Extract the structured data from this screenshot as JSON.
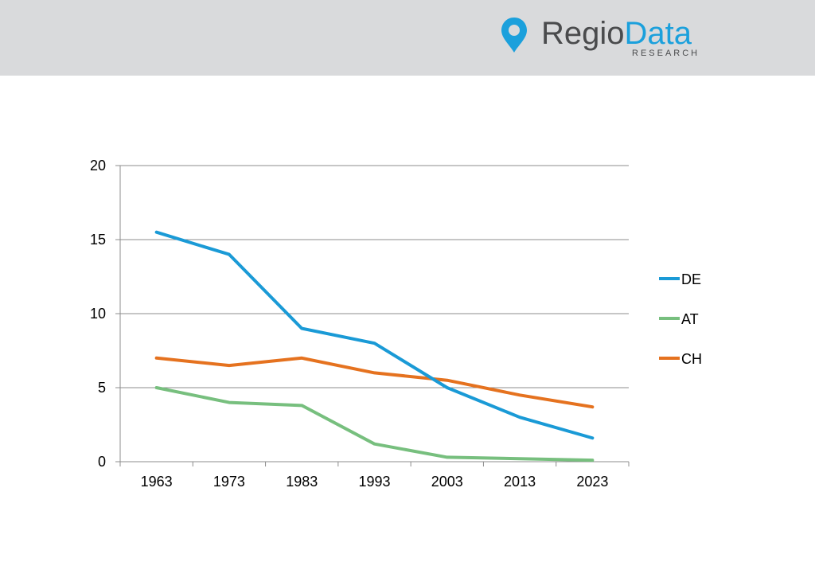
{
  "header": {
    "brand_part1": "Regio",
    "brand_part2": "Data",
    "brand_sub": "RESEARCH",
    "brand_color": "#1ba0dc",
    "brand_text_color": "#4a4b4d",
    "background": "#d9dadc",
    "logo_icon": "map-pin-icon"
  },
  "chart_data": {
    "type": "line",
    "categories": [
      "1963",
      "1973",
      "1983",
      "1993",
      "2003",
      "2013",
      "2023"
    ],
    "ylim": [
      0,
      20
    ],
    "yticks": [
      0,
      5,
      10,
      15,
      20
    ],
    "grid": true,
    "legend_position": "right",
    "series": [
      {
        "name": "DE",
        "color": "#1a9ad6",
        "values": [
          15.5,
          14.0,
          9.0,
          8.0,
          5.0,
          3.0,
          1.6
        ]
      },
      {
        "name": "AT",
        "color": "#77bf7e",
        "values": [
          5.0,
          4.0,
          3.8,
          1.2,
          0.3,
          0.2,
          0.1
        ]
      },
      {
        "name": "CH",
        "color": "#e5721f",
        "values": [
          7.0,
          6.5,
          7.0,
          6.0,
          5.5,
          4.5,
          3.7
        ]
      }
    ]
  }
}
